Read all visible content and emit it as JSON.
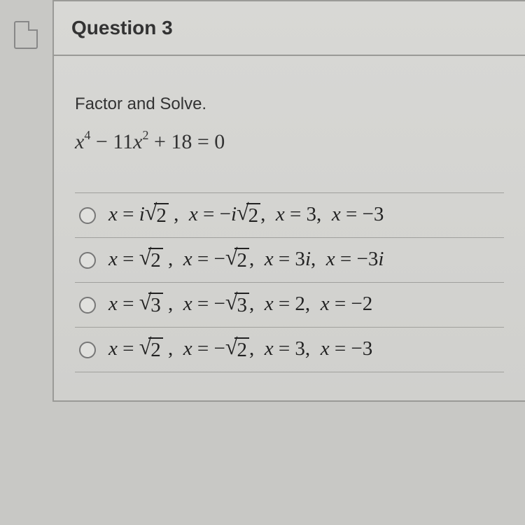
{
  "question": {
    "title": "Question 3",
    "instruction": "Factor and Solve.",
    "equation_html": "<span class='var'>x</span><sup>4</sup> <span class='num'>− 11</span><span class='var'>x</span><sup>2</sup> <span class='num'>+ 18 = 0</span>"
  },
  "options": [
    {
      "html": "<span class='var'>x</span> = <span class='var'>i</span><span class='radical'><span class='radical-sign'>√</span><span class='radicand'>2</span></span> ,&nbsp; <span class='var'>x</span> = −<span class='var'>i</span><span class='radical'><span class='radical-sign'>√</span><span class='radicand'>2</span></span>,&nbsp; <span class='var'>x</span> = 3,&nbsp; <span class='var'>x</span> = −3"
    },
    {
      "html": "<span class='var'>x</span> = <span class='radical'><span class='radical-sign'>√</span><span class='radicand'>2</span></span> ,&nbsp; <span class='var'>x</span> = −<span class='radical'><span class='radical-sign'>√</span><span class='radicand'>2</span></span>,&nbsp; <span class='var'>x</span> = 3<span class='var'>i</span>,&nbsp; <span class='var'>x</span> = −3<span class='var'>i</span>"
    },
    {
      "html": "<span class='var'>x</span> = <span class='radical'><span class='radical-sign'>√</span><span class='radicand'>3</span></span> ,&nbsp; <span class='var'>x</span> = −<span class='radical'><span class='radical-sign'>√</span><span class='radicand'>3</span></span>,&nbsp; <span class='var'>x</span> = 2,&nbsp; <span class='var'>x</span> = −2"
    },
    {
      "html": "<span class='var'>x</span> = <span class='radical'><span class='radical-sign'>√</span><span class='radicand'>2</span></span> ,&nbsp; <span class='var'>x</span> = −<span class='radical'><span class='radical-sign'>√</span><span class='radicand'>2</span></span>,&nbsp; <span class='var'>x</span> = 3,&nbsp; <span class='var'>x</span> = −3"
    }
  ],
  "styling": {
    "background": "#c8c8c5",
    "card_border": "#9a9a97",
    "text_color": "#333",
    "title_fontsize": 28,
    "instruction_fontsize": 24,
    "equation_fontsize": 30,
    "option_fontsize": 29,
    "radio_border": "#777"
  }
}
